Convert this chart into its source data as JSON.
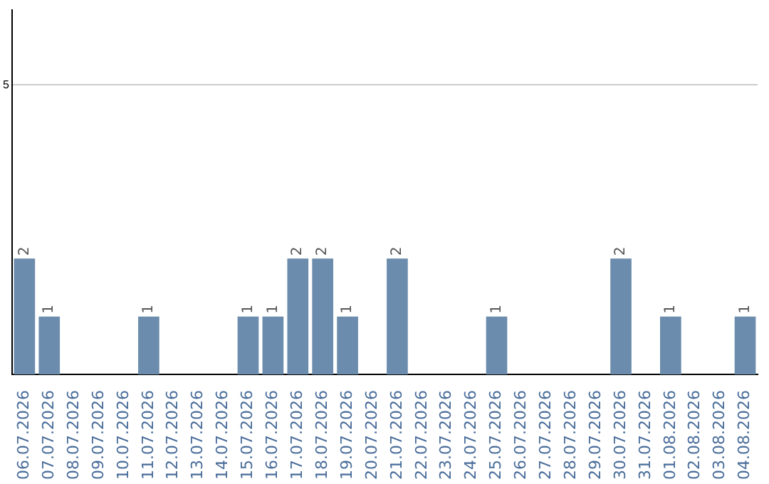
{
  "chart_data": {
    "type": "bar",
    "categories": [
      "06.07.2026",
      "07.07.2026",
      "08.07.2026",
      "09.07.2026",
      "10.07.2026",
      "11.07.2026",
      "12.07.2026",
      "13.07.2026",
      "14.07.2026",
      "15.07.2026",
      "16.07.2026",
      "17.07.2026",
      "18.07.2026",
      "19.07.2026",
      "20.07.2026",
      "21.07.2026",
      "22.07.2026",
      "23.07.2026",
      "24.07.2026",
      "25.07.2026",
      "26.07.2026",
      "27.07.2026",
      "28.07.2026",
      "29.07.2026",
      "30.07.2026",
      "31.07.2026",
      "01.08.2026",
      "02.08.2026",
      "03.08.2026",
      "04.08.2026"
    ],
    "values": [
      2,
      1,
      0,
      0,
      0,
      1,
      0,
      0,
      0,
      1,
      1,
      2,
      2,
      1,
      0,
      2,
      0,
      0,
      0,
      1,
      0,
      0,
      0,
      0,
      2,
      0,
      1,
      0,
      0,
      1
    ],
    "value_labels": [
      "2",
      "1",
      null,
      null,
      null,
      "1",
      null,
      null,
      null,
      "1",
      "1",
      "2",
      "2",
      "1",
      null,
      "2",
      null,
      null,
      null,
      "1",
      null,
      null,
      null,
      null,
      "2",
      null,
      "1",
      null,
      null,
      "1"
    ],
    "color": "#6b8cac",
    "ylim": [
      0,
      6.3
    ],
    "yticks": [
      5
    ],
    "grid": "y",
    "legend": false
  }
}
